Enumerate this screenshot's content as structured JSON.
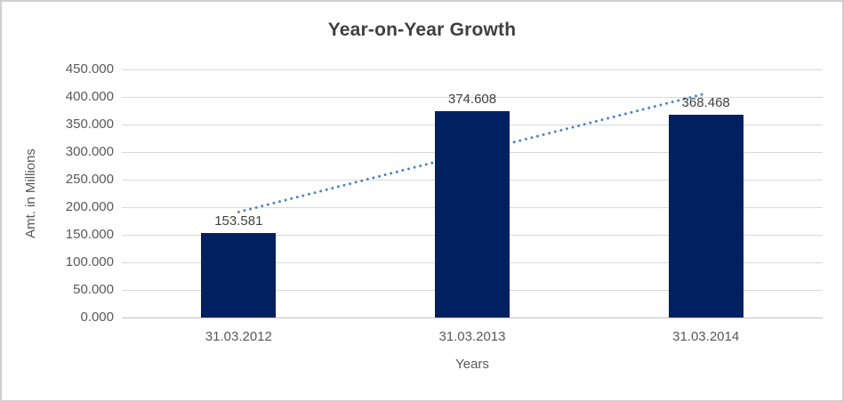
{
  "chart_data": {
    "type": "bar",
    "title": "Year-on-Year Growth",
    "xlabel": "Years",
    "ylabel": "Amt. in Millions",
    "categories": [
      "31.03.2012",
      "31.03.2013",
      "31.03.2014"
    ],
    "values": [
      153.581,
      374.608,
      368.468
    ],
    "data_labels": [
      "153.581",
      "374.608",
      "368.468"
    ],
    "ylim": [
      0,
      450
    ],
    "ytick_interval": 50,
    "ytick_labels": [
      "0.000",
      "50.000",
      "100.000",
      "150.000",
      "200.000",
      "250.000",
      "300.000",
      "350.000",
      "400.000",
      "450.000"
    ],
    "grid": true,
    "legend": false,
    "bar_color": "#002060",
    "gridline_color": "#d9d9d9",
    "axisline_color": "#c3c3c3",
    "tick_text_color": "#595959",
    "data_label_color": "#404040",
    "title_color": "#3f3f3f",
    "trendline": {
      "type": "linear",
      "style": "dotted",
      "color": "#4a86c8",
      "start_value": 191.4,
      "end_value": 406.3
    }
  }
}
